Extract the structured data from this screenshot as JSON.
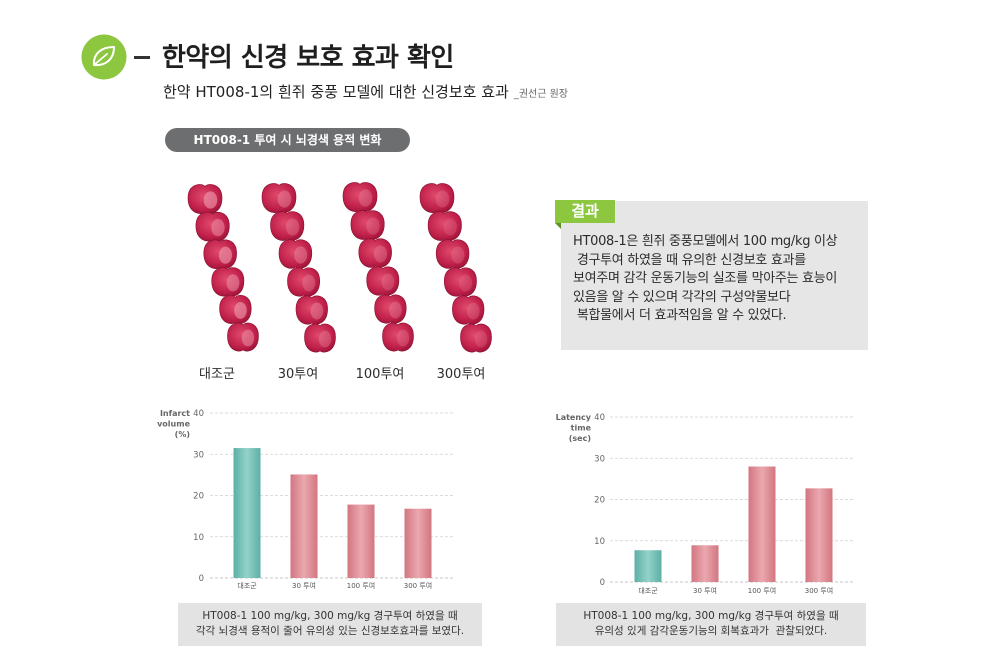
{
  "header": {
    "icon": "leaf-icon",
    "title": "한약의 신경 보호 효과 확인",
    "subtitle": "한약 HT008-1의 흰쥐 중풍 모델에 대한 신경보호 효과",
    "author": "_권선근 원장"
  },
  "colors": {
    "accent": "#8dc63f",
    "control_bar": "#62bdb0",
    "treatment_bar": "#e27f8a"
  },
  "brain_section": {
    "label": "HT008-1 투여 시 뇌경색 용적 변화",
    "groups": [
      "대조군",
      "30투여",
      "100투여",
      "300투여"
    ]
  },
  "result": {
    "tag": "결과",
    "lines": [
      "HT008-1은 흰쥐 중풍모델에서 100 mg/kg 이상",
      " 경구투여 하였을 때 유의한 신경보호 효과를",
      "보여주며 감각 운동기능의 실조를 막아주는 효능이",
      "있음을 알 수 있으며 각각의 구성약물보다",
      " 복합물에서 더 효과적임을 알 수 있었다."
    ]
  },
  "chart_data": [
    {
      "type": "bar",
      "ylabel": [
        "Infarct",
        "volume",
        "(%)"
      ],
      "categories": [
        "대조군",
        "30 투여",
        "100 투여",
        "300 투여"
      ],
      "values": [
        31.5,
        25.1,
        17.8,
        16.8
      ],
      "ylim": [
        0,
        40
      ],
      "yticks": [
        0,
        10,
        20,
        30,
        40
      ],
      "grid": true,
      "bar_colors": [
        "#62bdb0",
        "#e27f8a",
        "#e27f8a",
        "#e27f8a"
      ]
    },
    {
      "type": "bar",
      "ylabel": [
        "Latency",
        "time",
        "(sec)"
      ],
      "categories": [
        "대조군",
        "30 투여",
        "100 투여",
        "300 투여"
      ],
      "values": [
        7.7,
        8.9,
        28.0,
        22.7
      ],
      "ylim": [
        0,
        40
      ],
      "yticks": [
        0,
        10,
        20,
        30,
        40
      ],
      "grid": true,
      "bar_colors": [
        "#62bdb0",
        "#e27f8a",
        "#e27f8a",
        "#e27f8a"
      ]
    }
  ],
  "captions": [
    [
      "HT008-1 100 mg/kg, 300 mg/kg 경구투여 하였을 때",
      "각각 뇌경색 용적이 줄어 유의성 있는 신경보호효과를 보였다."
    ],
    [
      "HT008-1 100 mg/kg, 300 mg/kg 경구투여 하였을 때",
      "유의성 있게 감각운동기능의 회복효과가  관찰되었다."
    ]
  ]
}
